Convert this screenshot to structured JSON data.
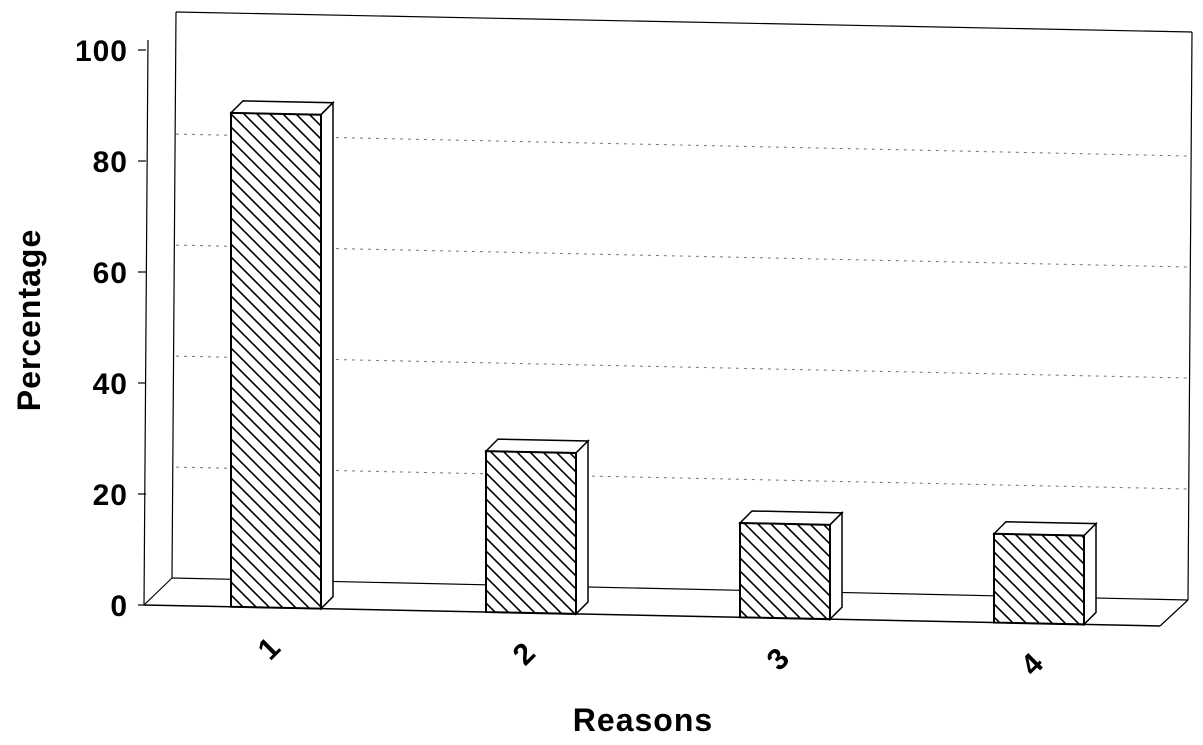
{
  "chart_data": {
    "type": "bar",
    "title": "",
    "xlabel": "Reasons",
    "ylabel": "Percentage",
    "categories": [
      "1",
      "2",
      "3",
      "4"
    ],
    "values": [
      89,
      29,
      17,
      16
    ],
    "ylim": [
      0,
      100
    ],
    "yticks": [
      "0",
      "20",
      "40",
      "60",
      "80",
      "100"
    ],
    "grid": true,
    "bar_fill": "diagonal-hatch",
    "style": "3d",
    "colors": {
      "ink": "#000000",
      "gridline": "#777777",
      "background": "#ffffff"
    }
  }
}
